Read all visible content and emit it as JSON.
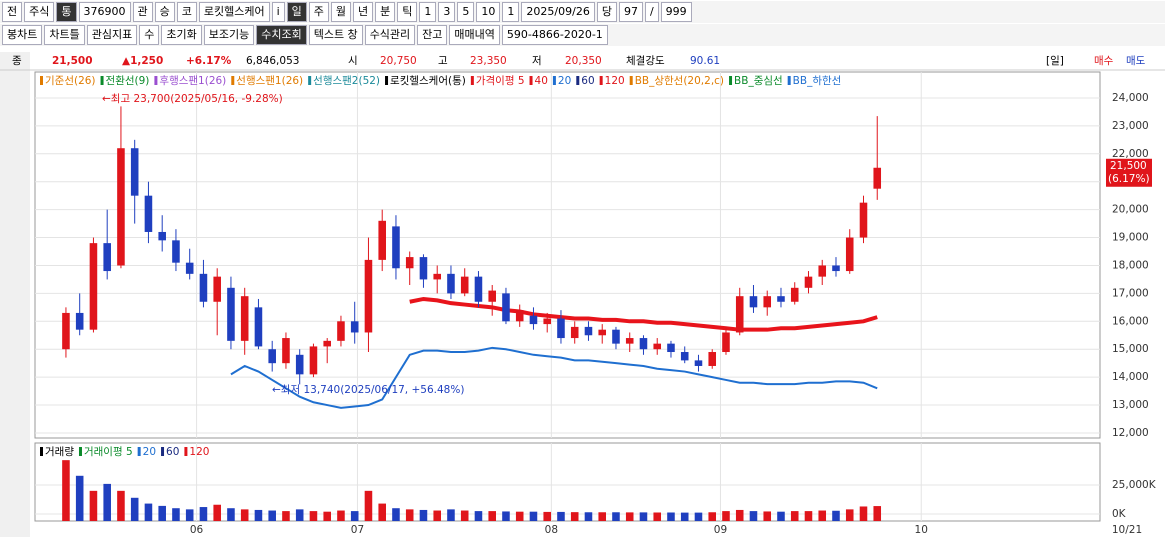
{
  "toolbar": {
    "row1": [
      "전",
      "주식",
      "통",
      "376900",
      "관",
      "승",
      "코",
      "로킷헬스케어",
      "i",
      "일",
      "주",
      "월",
      "년",
      "분",
      "틱",
      "1",
      "3",
      "5",
      "10",
      "1",
      "2025/09/26",
      "당",
      "97",
      "/",
      "999"
    ],
    "row2": [
      "봉차트",
      "차트틀",
      "관심지표",
      "수",
      "초기화",
      "보조기능",
      "수치조회",
      "텍스트 창",
      "수식관리",
      "잔고",
      "매매내역",
      "590-4866-2020-1"
    ]
  },
  "info": [
    "종",
    "21,500",
    "▲1,250",
    "+6.17%",
    "6,846,053",
    "시",
    "20,750",
    "고",
    "23,350",
    "저",
    "20,350",
    "체결강도",
    "90.61",
    "[일]",
    "매수",
    "매도"
  ],
  "legend": [
    {
      "name": "기준선(26)",
      "color": "#e07b00"
    },
    {
      "name": "전환선(9)",
      "color": "#0a8a2a"
    },
    {
      "name": "후행스팬1(26)",
      "color": "#9a4fd0"
    },
    {
      "name": "선행스팬1(26)",
      "color": "#e07b00"
    },
    {
      "name": "선행스팬2(52)",
      "color": "#1b8a9a"
    },
    {
      "name": "로킷헬스케어(통)",
      "color": "#000000"
    },
    {
      "name": "가격이평 5",
      "color": "#e0151b"
    },
    {
      "name": "40",
      "color": "#e0151b"
    },
    {
      "name": "20",
      "color": "#1f6fd0"
    },
    {
      "name": "60",
      "color": "#1a2a80"
    },
    {
      "name": "120",
      "color": "#e0151b"
    },
    {
      "name": "BB_상한선(20,2,c)",
      "color": "#e07b00"
    },
    {
      "name": "BB_중심선",
      "color": "#0a8a2a"
    },
    {
      "name": "BB_하한선",
      "color": "#1f6fd0"
    }
  ],
  "volume_legend": [
    {
      "name": "거래량",
      "color": "#000000"
    },
    {
      "name": "거래이평 5",
      "color": "#0a8a2a"
    },
    {
      "name": "20",
      "color": "#1f6fd0"
    },
    {
      "name": "60",
      "color": "#1a2a80"
    },
    {
      "name": "120",
      "color": "#e0151b"
    }
  ],
  "chart_data": {
    "type": "candlestick",
    "xlim": [
      -2.25,
      75.2
    ],
    "xticks": [
      {
        "value": 9.5,
        "label": "06"
      },
      {
        "value": 21.2,
        "label": "07"
      },
      {
        "value": 35.3,
        "label": "08"
      },
      {
        "value": 47.6,
        "label": "09"
      },
      {
        "value": 62.2,
        "label": "10"
      }
    ],
    "cursor_date": "10/21",
    "ylim": [
      11820,
      24930
    ],
    "yticks": [
      {
        "value": 12000,
        "label": "12,000"
      },
      {
        "value": 13000,
        "label": "13,000"
      },
      {
        "value": 14000,
        "label": "14,000"
      },
      {
        "value": 15000,
        "label": "15,000"
      },
      {
        "value": 16000,
        "label": "16,000"
      },
      {
        "value": 17000,
        "label": "17,000"
      },
      {
        "value": 18000,
        "label": "18,000"
      },
      {
        "value": 19000,
        "label": "19,000"
      },
      {
        "value": 20000,
        "label": "20,000"
      },
      {
        "value": 21000,
        "label": "21,000"
      },
      {
        "value": 22000,
        "label": "22,000"
      },
      {
        "value": 23000,
        "label": "23,000"
      },
      {
        "value": 24000,
        "label": "24,000"
      }
    ],
    "up_color": "#e0151b",
    "down_color": "#1f3fbf",
    "candles": [
      [
        15000,
        16500,
        14700,
        16300
      ],
      [
        16300,
        17000,
        15500,
        15700
      ],
      [
        15700,
        19000,
        15600,
        18800
      ],
      [
        18800,
        20000,
        17500,
        17800
      ],
      [
        18000,
        23700,
        17900,
        22200
      ],
      [
        22200,
        22500,
        19500,
        20500
      ],
      [
        20500,
        21000,
        18800,
        19200
      ],
      [
        19200,
        19800,
        18500,
        18900
      ],
      [
        18900,
        19300,
        17800,
        18100
      ],
      [
        18100,
        18600,
        17500,
        17700
      ],
      [
        17700,
        18200,
        16500,
        16700
      ],
      [
        16700,
        17900,
        15500,
        17600
      ],
      [
        17200,
        17600,
        15000,
        15300
      ],
      [
        15300,
        17200,
        14800,
        16900
      ],
      [
        16500,
        16800,
        15000,
        15100
      ],
      [
        15000,
        15300,
        14200,
        14500
      ],
      [
        14500,
        15600,
        14300,
        15400
      ],
      [
        14800,
        15000,
        13740,
        14100
      ],
      [
        14100,
        15200,
        14000,
        15100
      ],
      [
        15100,
        15400,
        14500,
        15300
      ],
      [
        15300,
        16200,
        15100,
        16000
      ],
      [
        16000,
        16700,
        15200,
        15600
      ],
      [
        15600,
        19000,
        14900,
        18200
      ],
      [
        18200,
        20000,
        17800,
        19600
      ],
      [
        19400,
        19800,
        17500,
        17900
      ],
      [
        17900,
        18500,
        17300,
        18300
      ],
      [
        18300,
        18400,
        17200,
        17500
      ],
      [
        17500,
        18000,
        17000,
        17700
      ],
      [
        17700,
        18000,
        16800,
        17000
      ],
      [
        17000,
        17900,
        16900,
        17600
      ],
      [
        17600,
        17800,
        16500,
        16700
      ],
      [
        16700,
        17300,
        16200,
        17100
      ],
      [
        17000,
        17200,
        15900,
        16000
      ],
      [
        16000,
        16600,
        15800,
        16400
      ],
      [
        16200,
        16500,
        15700,
        15900
      ],
      [
        15900,
        16300,
        15600,
        16100
      ],
      [
        16100,
        16400,
        15200,
        15400
      ],
      [
        15400,
        16000,
        15200,
        15800
      ],
      [
        15800,
        16000,
        15300,
        15500
      ],
      [
        15500,
        15900,
        15200,
        15700
      ],
      [
        15700,
        15800,
        15000,
        15200
      ],
      [
        15200,
        15600,
        14900,
        15400
      ],
      [
        15400,
        15500,
        14800,
        15000
      ],
      [
        15000,
        15400,
        14800,
        15200
      ],
      [
        15200,
        15300,
        14700,
        14900
      ],
      [
        14900,
        15100,
        14500,
        14600
      ],
      [
        14600,
        14800,
        14200,
        14400
      ],
      [
        14400,
        15000,
        14300,
        14900
      ],
      [
        14900,
        15800,
        14800,
        15600
      ],
      [
        15600,
        17200,
        15500,
        16900
      ],
      [
        16900,
        17300,
        16300,
        16500
      ],
      [
        16500,
        17100,
        16200,
        16900
      ],
      [
        16900,
        17200,
        16500,
        16700
      ],
      [
        16700,
        17400,
        16600,
        17200
      ],
      [
        17200,
        17800,
        17000,
        17600
      ],
      [
        17600,
        18200,
        17300,
        18000
      ],
      [
        18000,
        18300,
        17600,
        17800
      ],
      [
        17800,
        19300,
        17700,
        19000
      ],
      [
        19000,
        20500,
        18800,
        20250
      ],
      [
        20750,
        23350,
        20350,
        21500
      ]
    ],
    "series": [
      {
        "name": "120",
        "color": "#e8141b",
        "width": 4,
        "values": [
          null,
          null,
          null,
          null,
          null,
          null,
          null,
          null,
          null,
          null,
          null,
          null,
          null,
          null,
          null,
          null,
          null,
          null,
          null,
          null,
          null,
          null,
          null,
          null,
          null,
          16700,
          16800,
          16750,
          16650,
          16600,
          16550,
          16500,
          16400,
          16350,
          16250,
          16200,
          16150,
          16100,
          16100,
          16050,
          16050,
          16000,
          16000,
          15950,
          15950,
          15900,
          15850,
          15800,
          15750,
          15700,
          15700,
          15700,
          15750,
          15750,
          15800,
          15850,
          15900,
          15950,
          16000,
          16150
        ]
      },
      {
        "name": "BB_하한선",
        "color": "#1f6fd0",
        "width": 2,
        "values": [
          null,
          null,
          null,
          null,
          null,
          null,
          null,
          null,
          null,
          null,
          null,
          null,
          14100,
          14400,
          14200,
          13900,
          13600,
          13300,
          13100,
          13000,
          12900,
          12950,
          13000,
          13200,
          14000,
          14800,
          14950,
          14950,
          14900,
          14900,
          14950,
          15050,
          15000,
          14900,
          14800,
          14750,
          14700,
          14600,
          14600,
          14550,
          14500,
          14450,
          14400,
          14300,
          14250,
          14200,
          14100,
          14000,
          13900,
          13800,
          13800,
          13750,
          13750,
          13750,
          13800,
          13800,
          13850,
          13850,
          13800,
          13600
        ]
      }
    ],
    "annotations": [
      "←최고 23,700(2025/05/16, -9.28%)",
      "←최저 13,740(2025/06/17, +56.48%)"
    ],
    "price_tag": [
      "21,500",
      "(6.17%)"
    ],
    "volume": {
      "ylim": [
        0,
        57000
      ],
      "yticks": [
        {
          "value": 0,
          "label": "0K"
        },
        {
          "value": 25000,
          "label": "25,000K"
        }
      ],
      "values": [
        46500,
        33000,
        20000,
        26000,
        20000,
        14000,
        9000,
        7000,
        5000,
        4000,
        6000,
        8000,
        5000,
        4000,
        3500,
        3000,
        2500,
        4000,
        2500,
        2000,
        3000,
        2500,
        20000,
        9000,
        5000,
        4000,
        3500,
        3000,
        4000,
        3000,
        2500,
        2500,
        2200,
        2000,
        2000,
        1800,
        1800,
        1600,
        1500,
        1500,
        1500,
        1400,
        1400,
        1300,
        1300,
        1200,
        1200,
        1500,
        2500,
        3500,
        2500,
        2200,
        2000,
        2500,
        2500,
        3000,
        2800,
        4000,
        6500,
        6846
      ]
    }
  }
}
